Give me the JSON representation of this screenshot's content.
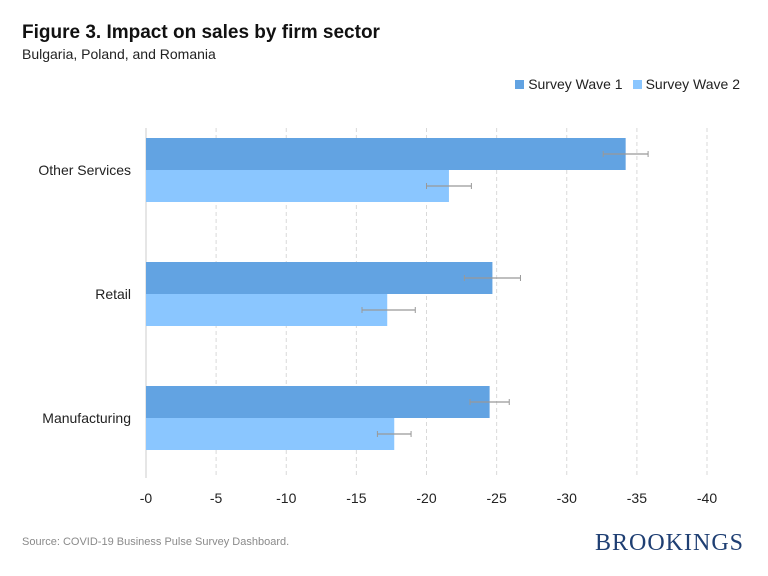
{
  "title": "Figure 3. Impact on sales by firm sector",
  "subtitle": "Bulgaria, Poland, and Romania",
  "source": "Source: COVID-19 Business Pulse Survey Dashboard.",
  "logo": "BROOKINGS",
  "chart_data": {
    "type": "bar",
    "orientation": "horizontal",
    "categories": [
      "Other Services",
      "Retail",
      "Manufacturing"
    ],
    "series": [
      {
        "name": "Survey Wave 1",
        "color": "#62a3e2",
        "values": [
          -34.2,
          -24.7,
          -24.5
        ],
        "error_low": [
          -32.6,
          -22.7,
          -23.1
        ],
        "error_high": [
          -35.8,
          -26.7,
          -25.9
        ]
      },
      {
        "name": "Survey Wave 2",
        "color": "#8ac6ff",
        "values": [
          -21.6,
          -17.2,
          -17.7
        ],
        "error_low": [
          -20.0,
          -15.4,
          -16.5
        ],
        "error_high": [
          -23.2,
          -19.2,
          -18.9
        ]
      }
    ],
    "xlim": [
      0,
      -40
    ],
    "xticks": [
      0,
      -5,
      -10,
      -15,
      -20,
      -25,
      -30,
      -35,
      -40
    ],
    "xtick_labels": [
      "-0",
      "-5",
      "-10",
      "-15",
      "-20",
      "-25",
      "-30",
      "-35",
      "-40"
    ],
    "grid": "vertical dashed",
    "legend": "top-right"
  }
}
